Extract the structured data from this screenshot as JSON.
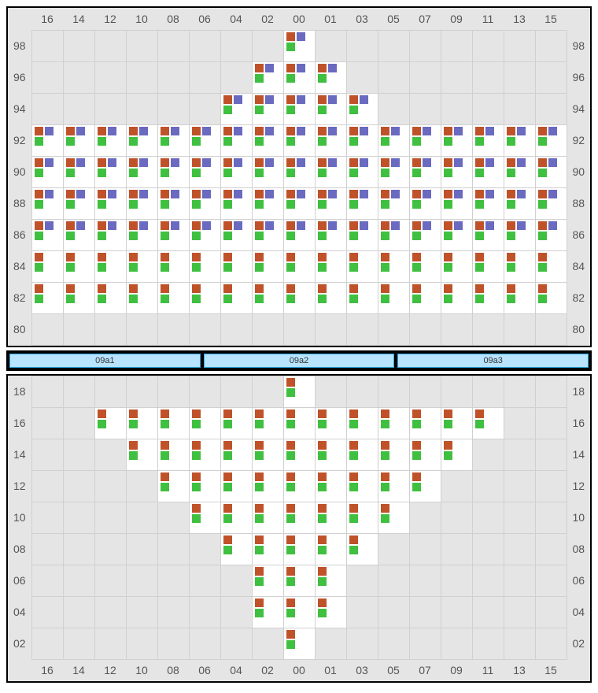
{
  "colors": {
    "orange": "#c0522a",
    "purple": "#6a6ac0",
    "green": "#40c040",
    "grid_bg": "#e5e5e5",
    "cell_bg": "#ffffff",
    "grid_line": "#d0d0d0",
    "label": "#555555",
    "legend_bg": "#b8e4ff",
    "legend_border": "#2aa7e0"
  },
  "columns": [
    "16",
    "14",
    "12",
    "10",
    "08",
    "06",
    "04",
    "02",
    "00",
    "01",
    "03",
    "05",
    "07",
    "09",
    "11",
    "13",
    "15"
  ],
  "top": {
    "row_labels": [
      "98",
      "96",
      "94",
      "92",
      "90",
      "88",
      "86",
      "84",
      "82",
      "80"
    ],
    "rows": [
      {
        "label": "98",
        "cells": [
          "",
          "",
          "",
          "",
          "",
          "",
          "",
          "",
          "OPG",
          "",
          "",
          "",
          "",
          "",
          "",
          "",
          ""
        ]
      },
      {
        "label": "96",
        "cells": [
          "",
          "",
          "",
          "",
          "",
          "",
          "",
          "OPG",
          "OPG",
          "OPG",
          "",
          "",
          "",
          "",
          "",
          "",
          ""
        ]
      },
      {
        "label": "94",
        "cells": [
          "",
          "",
          "",
          "",
          "",
          "",
          "OPG",
          "OPG",
          "OPG",
          "OPG",
          "OPG",
          "",
          "",
          "",
          "",
          "",
          ""
        ]
      },
      {
        "label": "92",
        "cells": [
          "OPG",
          "OPG",
          "OPG",
          "OPG",
          "OPG",
          "OPG",
          "OPG",
          "OPG",
          "OPG",
          "OPG",
          "OPG",
          "OPG",
          "OPG",
          "OPG",
          "OPG",
          "OPG",
          "OPG"
        ]
      },
      {
        "label": "90",
        "cells": [
          "OPG",
          "OPG",
          "OPG",
          "OPG",
          "OPG",
          "OPG",
          "OPG",
          "OPG",
          "OPG",
          "OPG",
          "OPG",
          "OPG",
          "OPG",
          "OPG",
          "OPG",
          "OPG",
          "OPG"
        ]
      },
      {
        "label": "88",
        "cells": [
          "OPG",
          "OPG",
          "OPG",
          "OPG",
          "OPG",
          "OPG",
          "OPG",
          "OPG",
          "OPG",
          "OPG",
          "OPG",
          "OPG",
          "OPG",
          "OPG",
          "OPG",
          "OPG",
          "OPG"
        ]
      },
      {
        "label": "86",
        "cells": [
          "OPG",
          "OPG",
          "OPG",
          "OPG",
          "OPG",
          "OPG",
          "OPG",
          "OPG",
          "OPG",
          "OPG",
          "OPG",
          "OPG",
          "OPG",
          "OPG",
          "OPG",
          "OPG",
          "OPG"
        ]
      },
      {
        "label": "84",
        "cells": [
          "OG",
          "OG",
          "OG",
          "OG",
          "OG",
          "OG",
          "OG",
          "OG",
          "OG",
          "OG",
          "OG",
          "OG",
          "OG",
          "OG",
          "OG",
          "OG",
          "OG"
        ]
      },
      {
        "label": "82",
        "cells": [
          "OG",
          "OG",
          "OG",
          "OG",
          "OG",
          "OG",
          "OG",
          "OG",
          "OG",
          "OG",
          "OG",
          "OG",
          "OG",
          "OG",
          "OG",
          "OG",
          "OG"
        ]
      },
      {
        "label": "80",
        "cells": [
          "",
          "",
          "",
          "",
          "",
          "",
          "",
          "",
          "",
          "",
          "",
          "",
          "",
          "",
          "",
          "",
          ""
        ]
      }
    ]
  },
  "legend": [
    "09a1",
    "09a2",
    "09a3"
  ],
  "bottom": {
    "row_labels": [
      "18",
      "16",
      "14",
      "12",
      "10",
      "08",
      "06",
      "04",
      "02"
    ],
    "rows": [
      {
        "label": "18",
        "cells": [
          "",
          "",
          "",
          "",
          "",
          "",
          "",
          "",
          "OG",
          "",
          "",
          "",
          "",
          "",
          "",
          "",
          ""
        ]
      },
      {
        "label": "16",
        "cells": [
          "",
          "",
          "OG",
          "OG",
          "OG",
          "OG",
          "OG",
          "OG",
          "OG",
          "OG",
          "OG",
          "OG",
          "OG",
          "OG",
          "OG",
          "",
          ""
        ]
      },
      {
        "label": "14",
        "cells": [
          "",
          "",
          "",
          "OG",
          "OG",
          "OG",
          "OG",
          "OG",
          "OG",
          "OG",
          "OG",
          "OG",
          "OG",
          "OG",
          "",
          "",
          ""
        ]
      },
      {
        "label": "12",
        "cells": [
          "",
          "",
          "",
          "",
          "OG",
          "OG",
          "OG",
          "OG",
          "OG",
          "OG",
          "OG",
          "OG",
          "OG",
          "",
          "",
          "",
          ""
        ]
      },
      {
        "label": "10",
        "cells": [
          "",
          "",
          "",
          "",
          "",
          "OG",
          "OG",
          "OG",
          "OG",
          "OG",
          "OG",
          "OG",
          "",
          "",
          "",
          "",
          ""
        ]
      },
      {
        "label": "08",
        "cells": [
          "",
          "",
          "",
          "",
          "",
          "",
          "OG",
          "OG",
          "OG",
          "OG",
          "OG",
          "",
          "",
          "",
          "",
          "",
          ""
        ]
      },
      {
        "label": "06",
        "cells": [
          "",
          "",
          "",
          "",
          "",
          "",
          "",
          "OG",
          "OG",
          "OG",
          "",
          "",
          "",
          "",
          "",
          "",
          ""
        ]
      },
      {
        "label": "04",
        "cells": [
          "",
          "",
          "",
          "",
          "",
          "",
          "",
          "OG",
          "OG",
          "OG",
          "",
          "",
          "",
          "",
          "",
          "",
          ""
        ]
      },
      {
        "label": "02",
        "cells": [
          "",
          "",
          "",
          "",
          "",
          "",
          "",
          "",
          "OG",
          "",
          "",
          "",
          "",
          "",
          "",
          "",
          ""
        ]
      }
    ]
  },
  "swatch_types": {
    "OPG": [
      "orange_purple",
      "green"
    ],
    "OG": [
      "orange",
      "green"
    ]
  }
}
